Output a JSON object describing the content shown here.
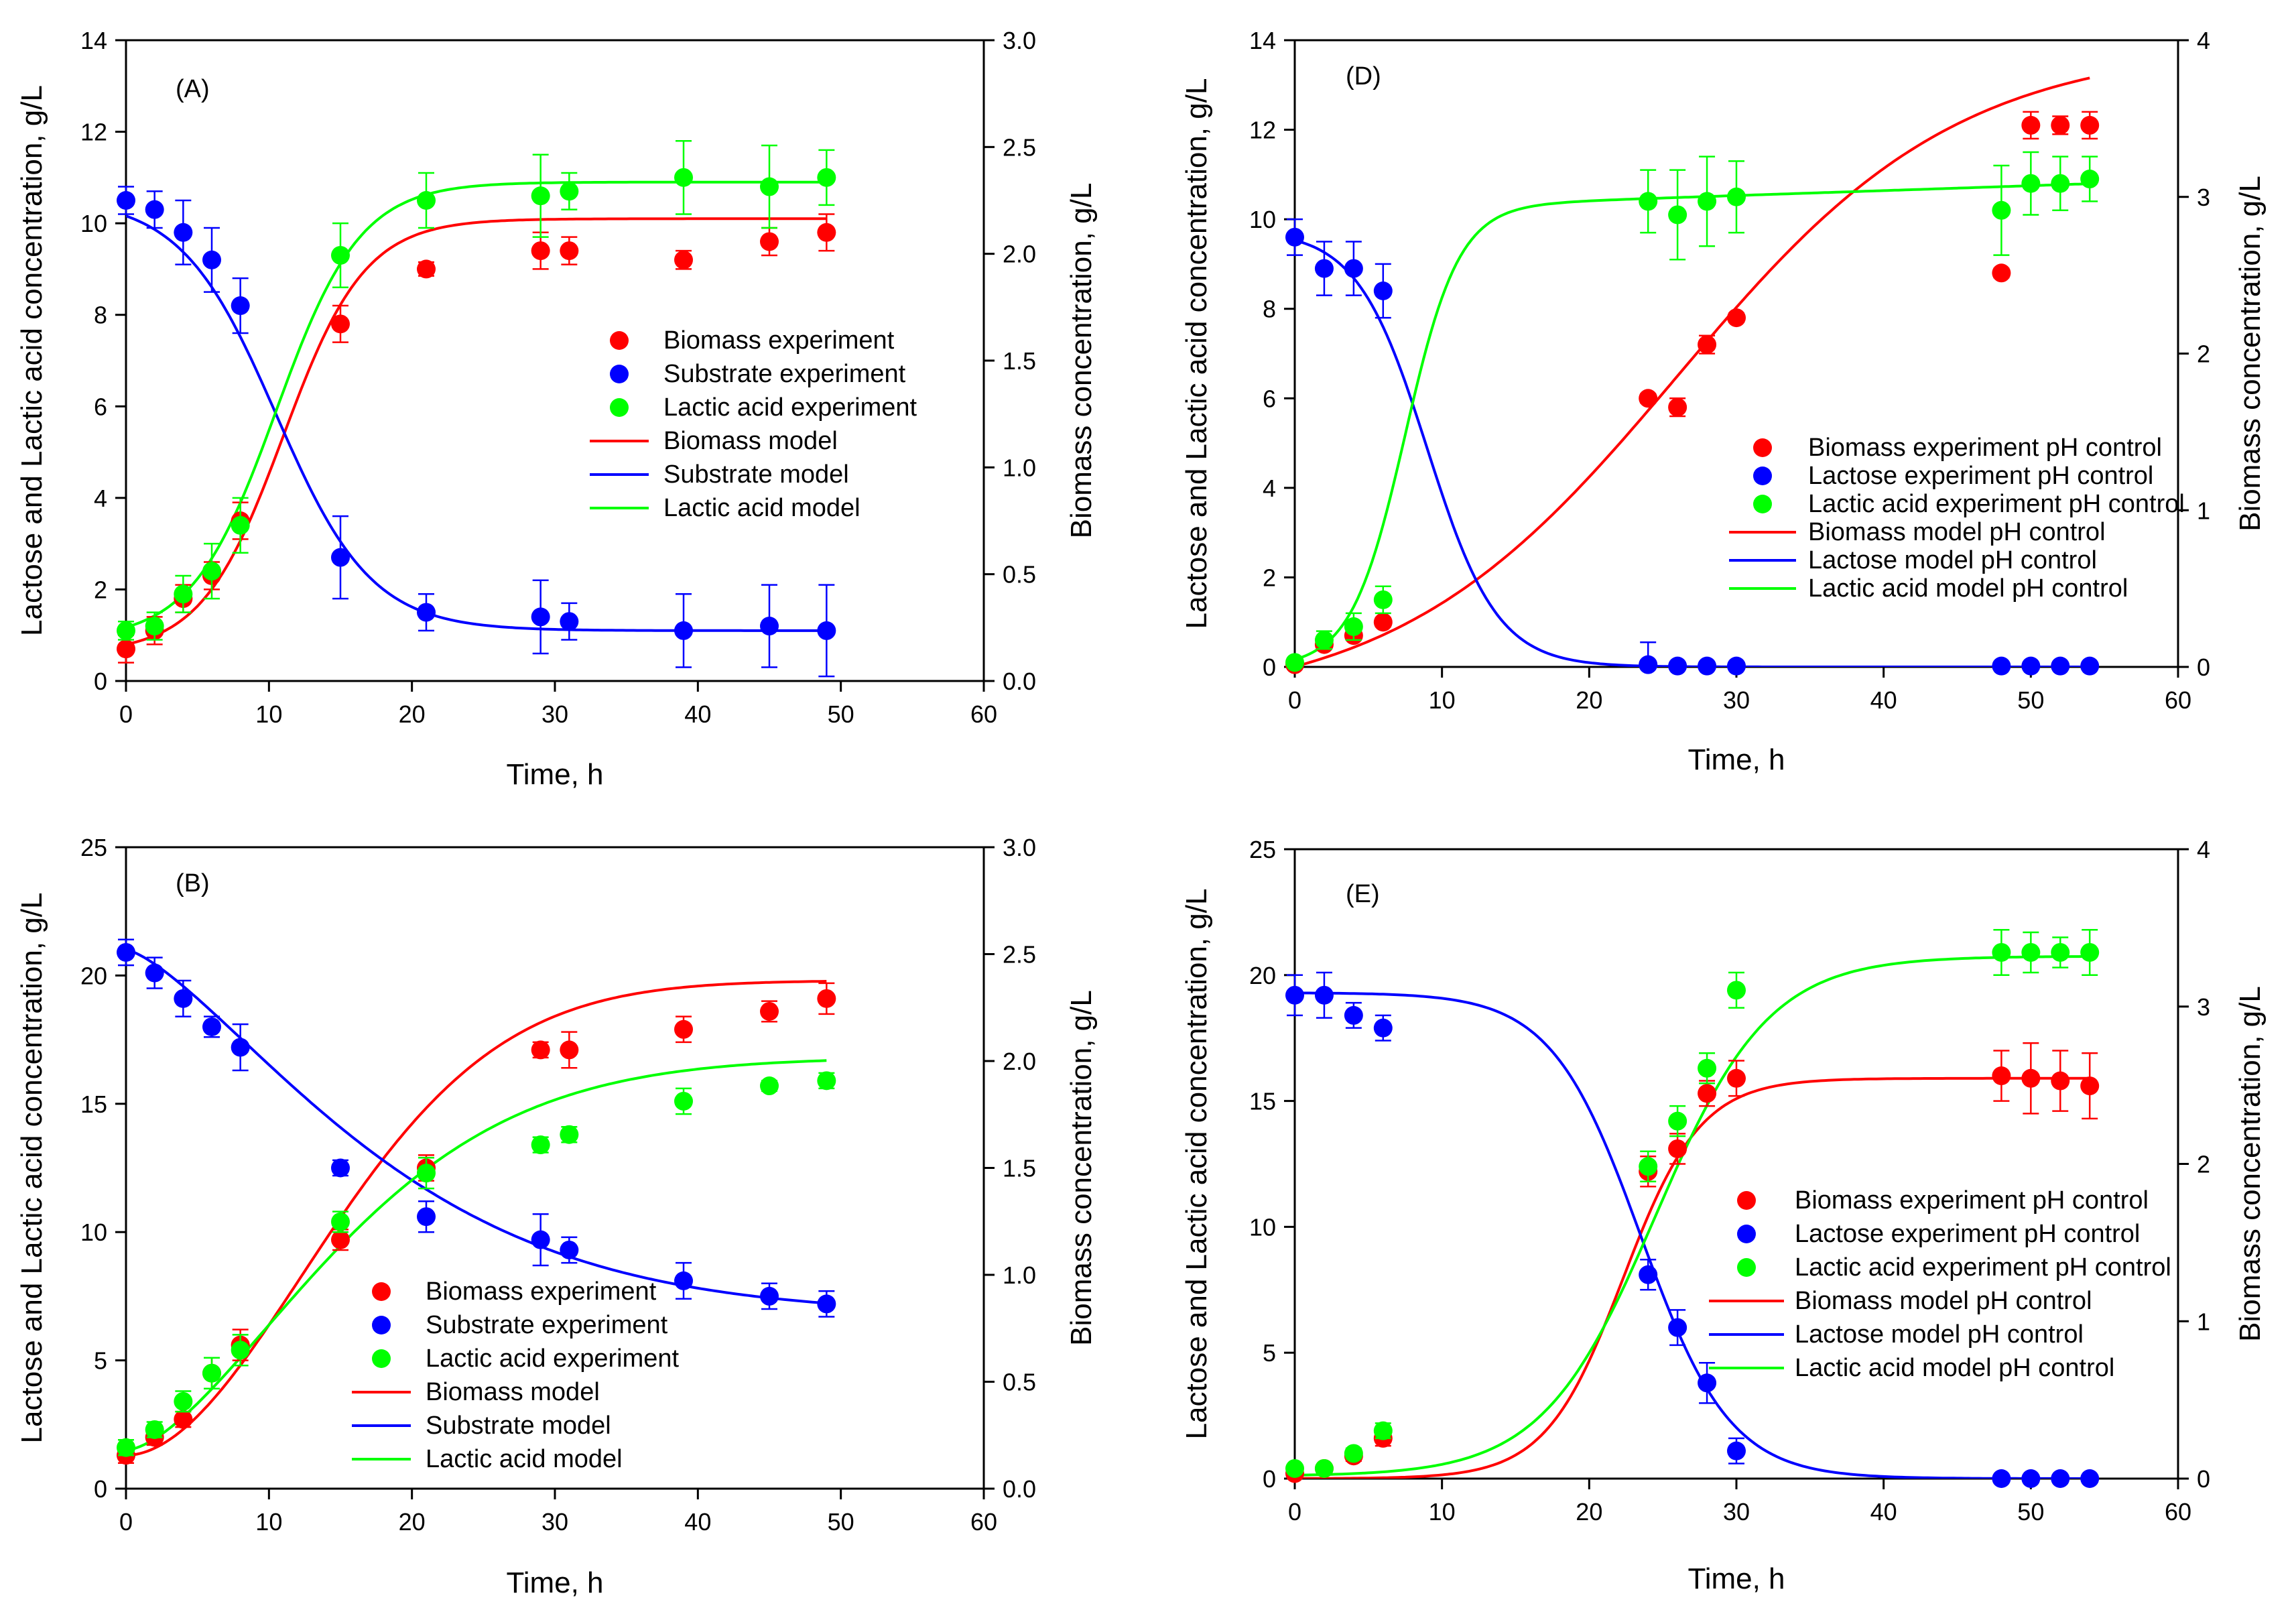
{
  "figure": {
    "colors": {
      "biomass": "#ff0000",
      "substrate": "#0000ff",
      "lactic": "#00ff00",
      "axis": "#000000"
    }
  },
  "chart_data": [
    {
      "panel": "(A)",
      "type": "scatter",
      "xlabel": "Time, h",
      "ylabel_left": "Lactose and Lactic acid concentration, g/L",
      "ylabel_right": "Biomass concentration, g/L",
      "xlim": [
        0,
        60
      ],
      "xticks": [
        0,
        10,
        20,
        30,
        40,
        50,
        60
      ],
      "ylim_left": [
        0,
        14
      ],
      "yticks_left": [
        0,
        2,
        4,
        6,
        8,
        10,
        12,
        14
      ],
      "ylim_right": [
        0,
        3.0
      ],
      "yticks_right": [
        "0.0",
        "0.5",
        "1.0",
        "1.5",
        "2.0",
        "2.5",
        "3.0"
      ],
      "legend_position": "center-right",
      "series": [
        {
          "name": "Biomass experiment",
          "kind": "points",
          "axis": "left",
          "color": "#ff0000",
          "x": [
            0,
            2,
            4,
            6,
            8,
            15,
            21,
            29,
            31,
            39,
            45,
            49
          ],
          "y": [
            0.7,
            1.1,
            1.8,
            2.3,
            3.5,
            7.8,
            9.0,
            9.4,
            9.4,
            9.2,
            9.6,
            9.8
          ],
          "err": [
            0.3,
            0.3,
            0.3,
            0.3,
            0.4,
            0.4,
            0.15,
            0.4,
            0.3,
            0.2,
            0.3,
            0.4
          ]
        },
        {
          "name": "Substrate experiment",
          "kind": "points",
          "axis": "left",
          "color": "#0000ff",
          "x": [
            0,
            2,
            4,
            6,
            8,
            15,
            21,
            29,
            31,
            39,
            45,
            49
          ],
          "y": [
            10.5,
            10.3,
            9.8,
            9.2,
            8.2,
            2.7,
            1.5,
            1.4,
            1.3,
            1.1,
            1.2,
            1.1
          ],
          "err": [
            0.3,
            0.4,
            0.7,
            0.7,
            0.6,
            0.9,
            0.4,
            0.8,
            0.4,
            0.8,
            0.9,
            1.0
          ]
        },
        {
          "name": "Lactic acid experiment",
          "kind": "points",
          "axis": "left",
          "color": "#00ff00",
          "x": [
            0,
            2,
            4,
            6,
            8,
            15,
            21,
            29,
            31,
            39,
            45,
            49
          ],
          "y": [
            1.1,
            1.2,
            1.9,
            2.4,
            3.4,
            9.3,
            10.5,
            10.6,
            10.7,
            11.0,
            10.8,
            11.0
          ],
          "err": [
            0.2,
            0.3,
            0.4,
            0.6,
            0.6,
            0.7,
            0.6,
            0.9,
            0.4,
            0.8,
            0.9,
            0.6
          ]
        },
        {
          "name": "Biomass model",
          "kind": "line",
          "axis": "left",
          "color": "#ff0000",
          "model": {
            "type": "logistic",
            "A": 0.6,
            "B": 10.1,
            "k": 0.35,
            "x0": 11.0
          }
        },
        {
          "name": "Substrate model",
          "kind": "line",
          "axis": "left",
          "color": "#0000ff",
          "model": {
            "type": "decay",
            "A": 10.55,
            "B": 1.1,
            "k": 0.3,
            "x0": 10.5
          }
        },
        {
          "name": "Lactic acid model",
          "kind": "line",
          "axis": "left",
          "color": "#00ff00",
          "model": {
            "type": "logistic",
            "A": 0.9,
            "B": 10.9,
            "k": 0.34,
            "x0": 10.5
          }
        }
      ]
    },
    {
      "panel": "(B)",
      "type": "scatter",
      "xlabel": "Time, h",
      "ylabel_left": "Lactose and Lactic acid concentration, g/L",
      "ylabel_right": "Biomass concentration, g/L",
      "xlim": [
        0,
        60
      ],
      "xticks": [
        0,
        10,
        20,
        30,
        40,
        50,
        60
      ],
      "ylim_left": [
        0,
        25
      ],
      "yticks_left": [
        0,
        5,
        10,
        15,
        20,
        25
      ],
      "ylim_right": [
        0,
        3.0
      ],
      "yticks_right": [
        "0.0",
        "0.5",
        "1.0",
        "1.5",
        "2.0",
        "2.5",
        "3.0"
      ],
      "legend_position": "bottom-center",
      "series": [
        {
          "name": "Biomass experiment",
          "kind": "points",
          "axis": "left",
          "color": "#ff0000",
          "x": [
            0,
            2,
            4,
            6,
            8,
            15,
            21,
            29,
            31,
            39,
            45,
            49
          ],
          "y": [
            1.3,
            2.0,
            2.7,
            4.5,
            5.6,
            9.7,
            12.5,
            17.1,
            17.1,
            17.9,
            18.6,
            19.1
          ],
          "err": [
            0.3,
            0.3,
            0.3,
            0.6,
            0.6,
            0.4,
            0.5,
            0.3,
            0.7,
            0.5,
            0.4,
            0.6
          ]
        },
        {
          "name": "Substrate experiment",
          "kind": "points",
          "axis": "left",
          "color": "#0000ff",
          "x": [
            0,
            2,
            4,
            6,
            8,
            15,
            21,
            29,
            31,
            39,
            45,
            49
          ],
          "y": [
            20.9,
            20.1,
            19.1,
            18.0,
            17.2,
            12.5,
            10.6,
            9.7,
            9.3,
            8.1,
            7.5,
            7.2
          ],
          "err": [
            0.5,
            0.6,
            0.7,
            0.4,
            0.9,
            0.3,
            0.6,
            1.0,
            0.5,
            0.7,
            0.5,
            0.5
          ]
        },
        {
          "name": "Lactic acid experiment",
          "kind": "points",
          "axis": "left",
          "color": "#00ff00",
          "x": [
            0,
            2,
            4,
            6,
            8,
            15,
            21,
            29,
            31,
            39,
            45,
            49
          ],
          "y": [
            1.6,
            2.3,
            3.4,
            4.5,
            5.4,
            10.4,
            12.3,
            13.4,
            13.8,
            15.1,
            15.7,
            15.9
          ],
          "err": [
            0.3,
            0.3,
            0.4,
            0.6,
            0.6,
            0.4,
            0.6,
            0.3,
            0.3,
            0.5,
            0.2,
            0.3
          ]
        },
        {
          "name": "Biomass model",
          "kind": "line",
          "axis": "left",
          "color": "#ff0000",
          "model": {
            "type": "saturating",
            "A": 1.3,
            "B": 19.8,
            "k": 0.055,
            "x0": 0,
            "pow": 1.9
          }
        },
        {
          "name": "Substrate model",
          "kind": "line",
          "axis": "left",
          "color": "#0000ff",
          "model": {
            "type": "saturating-decay",
            "A": 21.0,
            "B": 6.8,
            "k": 0.05,
            "pow": 1.4
          }
        },
        {
          "name": "Lactic acid model",
          "kind": "line",
          "axis": "left",
          "color": "#00ff00",
          "model": {
            "type": "saturating",
            "A": 1.5,
            "B": 16.8,
            "k": 0.055,
            "x0": 0,
            "pow": 1.6
          }
        }
      ]
    },
    {
      "panel": "(D)",
      "type": "scatter",
      "xlabel": "Time, h",
      "ylabel_left": "Lactose and Lactic acid concentration, g/L",
      "ylabel_right": "Biomass concentration, g/L",
      "xlim": [
        0,
        60
      ],
      "xticks": [
        0,
        10,
        20,
        30,
        40,
        50,
        60
      ],
      "ylim_left": [
        0,
        14
      ],
      "yticks_left": [
        0,
        2,
        4,
        6,
        8,
        10,
        12,
        14
      ],
      "ylim_right": [
        0,
        4
      ],
      "yticks_right": [
        "0",
        "1",
        "2",
        "3",
        "4"
      ],
      "legend_position": "center",
      "series": [
        {
          "name": "Biomass experiment pH control",
          "kind": "points",
          "axis": "left",
          "color": "#ff0000",
          "x": [
            0,
            2,
            4,
            6,
            24,
            26,
            28,
            30,
            48,
            50,
            52,
            54
          ],
          "y": [
            0.05,
            0.5,
            0.7,
            1.0,
            6.0,
            5.8,
            7.2,
            7.8,
            8.8,
            12.1,
            12.1,
            12.1
          ],
          "err": [
            0,
            0.1,
            0.1,
            0.1,
            0.1,
            0.2,
            0.2,
            0.1,
            0.1,
            0.3,
            0.2,
            0.3
          ]
        },
        {
          "name": "Lactose experiment pH control",
          "kind": "points",
          "axis": "left",
          "color": "#0000ff",
          "x": [
            0,
            2,
            4,
            6,
            24,
            26,
            28,
            30,
            48,
            50,
            52,
            54
          ],
          "y": [
            9.6,
            8.9,
            8.9,
            8.4,
            0.05,
            0.02,
            0.02,
            0.02,
            0.02,
            0.02,
            0.02,
            0.02
          ],
          "err": [
            0.4,
            0.6,
            0.6,
            0.6,
            0.5,
            0,
            0,
            0,
            0,
            0,
            0,
            0
          ]
        },
        {
          "name": "Lactic acid experiment pH control",
          "kind": "points",
          "axis": "left",
          "color": "#00ff00",
          "x": [
            0,
            2,
            4,
            6,
            24,
            26,
            28,
            30,
            48,
            50,
            52,
            54
          ],
          "y": [
            0.1,
            0.6,
            0.9,
            1.5,
            10.4,
            10.1,
            10.4,
            10.5,
            10.2,
            10.8,
            10.8,
            10.9
          ],
          "err": [
            0.05,
            0.2,
            0.3,
            0.3,
            0.7,
            1.0,
            1.0,
            0.8,
            1.0,
            0.7,
            0.6,
            0.5
          ]
        },
        {
          "name": "Biomass model pH control",
          "kind": "line",
          "axis": "left",
          "color": "#ff0000",
          "model": {
            "type": "logistic",
            "A": -0.9,
            "B": 13.9,
            "k": 0.105,
            "x0": 26.0
          }
        },
        {
          "name": "Lactose model pH control",
          "kind": "line",
          "axis": "left",
          "color": "#0000ff",
          "model": {
            "type": "decay",
            "A": 9.75,
            "B": 0.0,
            "k": 0.42,
            "x0": 9.0
          }
        },
        {
          "name": "Lactic acid model pH control",
          "kind": "line",
          "axis": "left",
          "color": "#00ff00",
          "model": {
            "type": "logistic-drift",
            "A": 0.0,
            "B": 10.2,
            "k": 0.55,
            "x0": 7.5,
            "drift": 0.011
          }
        }
      ]
    },
    {
      "panel": "(E)",
      "type": "scatter",
      "xlabel": "Time, h",
      "ylabel_left": "Lactose and Lactic acid concentration, g/L",
      "ylabel_right": "Biomass concentration, g/L",
      "xlim": [
        0,
        60
      ],
      "xticks": [
        0,
        10,
        20,
        30,
        40,
        50,
        60
      ],
      "ylim_left": [
        0,
        25
      ],
      "yticks_left": [
        0,
        5,
        10,
        15,
        20,
        25
      ],
      "ylim_right": [
        0,
        4
      ],
      "yticks_right": [
        "0",
        "1",
        "2",
        "3",
        "4"
      ],
      "legend_position": "center-right",
      "series": [
        {
          "name": "Biomass experiment pH control",
          "kind": "points",
          "axis": "left",
          "color": "#ff0000",
          "x": [
            0,
            2,
            4,
            6,
            24,
            26,
            28,
            30,
            48,
            50,
            52,
            54
          ],
          "y": [
            0.2,
            0.4,
            0.9,
            1.6,
            12.2,
            13.1,
            15.3,
            15.9,
            16.0,
            15.9,
            15.8,
            15.6
          ],
          "err": [
            0.1,
            0.1,
            0.2,
            0.3,
            0.6,
            0.6,
            0.5,
            0.7,
            1.0,
            1.4,
            1.2,
            1.3
          ]
        },
        {
          "name": "Lactose experiment pH control",
          "kind": "points",
          "axis": "left",
          "color": "#0000ff",
          "x": [
            0,
            2,
            4,
            6,
            24,
            26,
            28,
            30,
            48,
            50,
            52,
            54
          ],
          "y": [
            19.2,
            19.2,
            18.4,
            17.9,
            8.1,
            6.0,
            3.8,
            1.1,
            0.0,
            0.0,
            0.0,
            0.0
          ],
          "err": [
            0.8,
            0.9,
            0.5,
            0.5,
            0.6,
            0.7,
            0.8,
            0.5,
            0,
            0,
            0,
            0
          ]
        },
        {
          "name": "Lactic acid experiment pH control",
          "kind": "points",
          "axis": "left",
          "color": "#00ff00",
          "x": [
            0,
            2,
            4,
            6,
            24,
            26,
            28,
            30,
            48,
            50,
            52,
            54
          ],
          "y": [
            0.4,
            0.4,
            1.0,
            1.9,
            12.4,
            14.2,
            16.3,
            19.4,
            20.9,
            20.9,
            20.9,
            20.9
          ],
          "err": [
            0.1,
            0.1,
            0.2,
            0.3,
            0.6,
            0.6,
            0.6,
            0.7,
            0.9,
            0.8,
            0.6,
            0.9
          ]
        },
        {
          "name": "Biomass model pH control",
          "kind": "line",
          "axis": "left",
          "color": "#ff0000",
          "model": {
            "type": "logistic",
            "A": 0.0,
            "B": 15.9,
            "k": 0.38,
            "x0": 22.3
          }
        },
        {
          "name": "Lactose model pH control",
          "kind": "line",
          "axis": "left",
          "color": "#0000ff",
          "model": {
            "type": "decay",
            "A": 19.3,
            "B": 0.0,
            "k": 0.33,
            "x0": 23.5
          }
        },
        {
          "name": "Lactic acid model pH control",
          "kind": "line",
          "axis": "left",
          "color": "#00ff00",
          "model": {
            "type": "logistic",
            "A": 0.1,
            "B": 20.75,
            "k": 0.26,
            "x0": 24.5
          }
        }
      ]
    }
  ]
}
